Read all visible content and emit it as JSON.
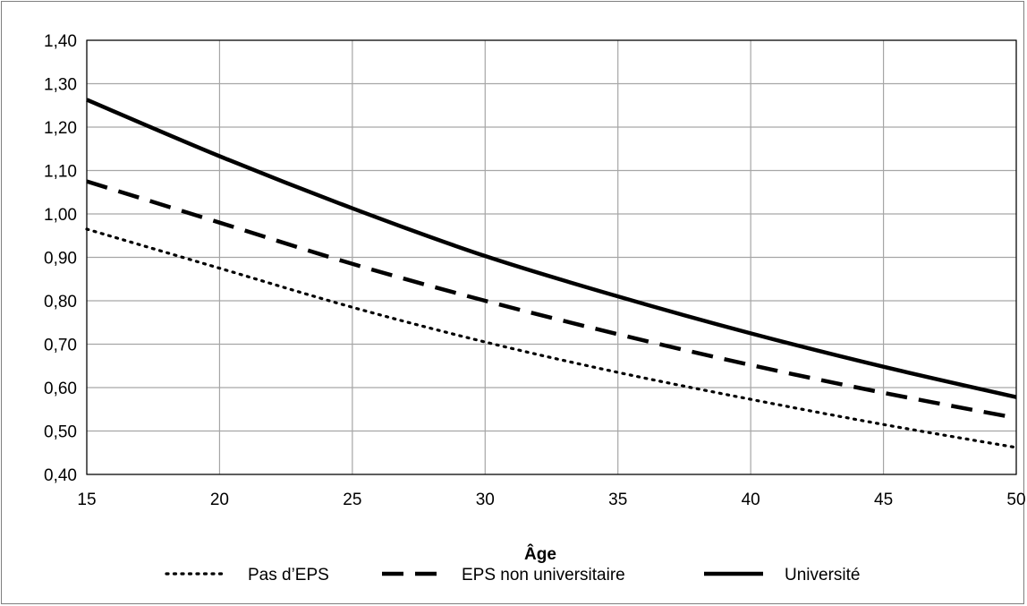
{
  "chart_data": {
    "type": "line",
    "title": "",
    "xlabel": "Âge",
    "ylabel": "",
    "xlim": [
      15,
      50
    ],
    "ylim": [
      0.4,
      1.4
    ],
    "x_ticks": [
      {
        "value": 15,
        "label": "15"
      },
      {
        "value": 20,
        "label": "20"
      },
      {
        "value": 25,
        "label": "25"
      },
      {
        "value": 30,
        "label": "30"
      },
      {
        "value": 35,
        "label": "35"
      },
      {
        "value": 40,
        "label": "40"
      },
      {
        "value": 45,
        "label": "45"
      },
      {
        "value": 50,
        "label": "50"
      }
    ],
    "y_ticks": [
      {
        "value": 0.4,
        "label": "0,40"
      },
      {
        "value": 0.5,
        "label": "0,50"
      },
      {
        "value": 0.6,
        "label": "0,60"
      },
      {
        "value": 0.7,
        "label": "0,70"
      },
      {
        "value": 0.8,
        "label": "0,80"
      },
      {
        "value": 0.9,
        "label": "0,90"
      },
      {
        "value": 1.0,
        "label": "1,00"
      },
      {
        "value": 1.1,
        "label": "1,10"
      },
      {
        "value": 1.2,
        "label": "1,20"
      },
      {
        "value": 1.3,
        "label": "1,30"
      },
      {
        "value": 1.4,
        "label": "1,40"
      }
    ],
    "grid": true,
    "legend_position": "bottom",
    "x": [
      15,
      20,
      25,
      30,
      35,
      40,
      45,
      50
    ],
    "series": [
      {
        "name": "Pas d’EPS",
        "style": "dotted",
        "color": "#000000",
        "values": [
          0.965,
          0.875,
          0.785,
          0.705,
          0.635,
          0.573,
          0.515,
          0.462
        ]
      },
      {
        "name": "EPS non universitaire",
        "style": "dashed",
        "color": "#000000",
        "values": [
          1.075,
          0.98,
          0.885,
          0.8,
          0.723,
          0.652,
          0.588,
          0.53
        ]
      },
      {
        "name": "Université",
        "style": "solid",
        "color": "#000000",
        "values": [
          1.263,
          1.133,
          1.013,
          0.903,
          0.81,
          0.725,
          0.648,
          0.578
        ]
      }
    ]
  }
}
